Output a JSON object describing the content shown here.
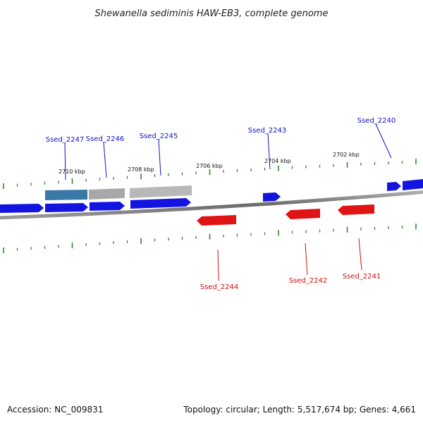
{
  "title": "Shewanella sediminis HAW-EB3, complete genome",
  "footer": {
    "accession": "Accession: NC_009831",
    "summary": "Topology: circular; Length: 5,517,674 bp; Genes: 4,661"
  },
  "colors": {
    "forward_gene": "#1010e0",
    "reverse_gene": "#e01010",
    "other_feature": "#a8a8a8",
    "highlight_gene": "#3a78a8",
    "backbone": "#808080",
    "ticks": "#2a8a2a",
    "label_forward": "#1010c0",
    "label_reverse": "#d01010"
  },
  "ruler_labels": [
    "2710 kbp",
    "2708 kbp",
    "2706 kbp",
    "2704 kbp",
    "2702 kbp"
  ],
  "gene_labels": [
    {
      "name": "Ssed_2247",
      "strand": "forward"
    },
    {
      "name": "Ssed_2246",
      "strand": "forward"
    },
    {
      "name": "Ssed_2245",
      "strand": "forward"
    },
    {
      "name": "Ssed_2243",
      "strand": "forward"
    },
    {
      "name": "Ssed_2240",
      "strand": "forward"
    },
    {
      "name": "Ssed_2244",
      "strand": "reverse"
    },
    {
      "name": "Ssed_2242",
      "strand": "reverse"
    },
    {
      "name": "Ssed_2241",
      "strand": "reverse"
    }
  ]
}
